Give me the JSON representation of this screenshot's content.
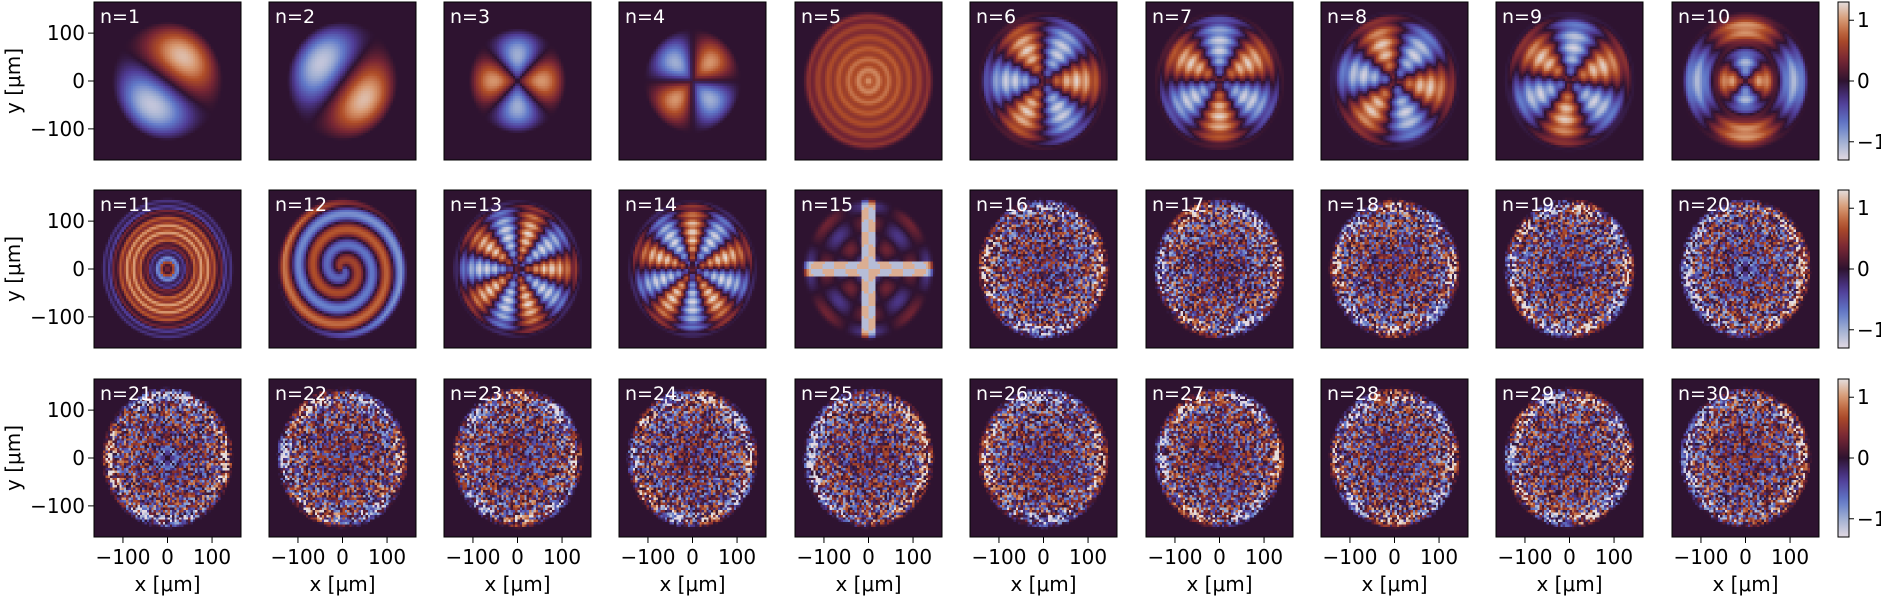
{
  "chart_data": {
    "type": "heatmap",
    "layout": {
      "rows": 3,
      "cols": 10
    },
    "colormap": "twilight_shifted",
    "colors": {
      "background": "#2e1330",
      "positive": "#a64220",
      "negative": "#5e77c6",
      "extreme": "#e6dfe0"
    },
    "xlabel": "x [μm]",
    "ylabel": "y [μm]",
    "xlim": [
      -165,
      165
    ],
    "ylim": [
      -165,
      165
    ],
    "xticks": [
      -100,
      0,
      100
    ],
    "xtick_labels": [
      "−100",
      "0",
      "100"
    ],
    "yticks": [
      100,
      0,
      -100
    ],
    "ytick_labels": [
      "100",
      "0",
      "−100"
    ],
    "colorbar": {
      "ticks": [
        1,
        0,
        -1
      ],
      "tick_labels": [
        "1",
        "0",
        "−1"
      ],
      "range": [
        -1.3,
        1.3
      ]
    },
    "panels": [
      {
        "label": "n=1",
        "n": 1
      },
      {
        "label": "n=2",
        "n": 2
      },
      {
        "label": "n=3",
        "n": 3
      },
      {
        "label": "n=4",
        "n": 4
      },
      {
        "label": "n=5",
        "n": 5
      },
      {
        "label": "n=6",
        "n": 6
      },
      {
        "label": "n=7",
        "n": 7
      },
      {
        "label": "n=8",
        "n": 8
      },
      {
        "label": "n=9",
        "n": 9
      },
      {
        "label": "n=10",
        "n": 10
      },
      {
        "label": "n=11",
        "n": 11
      },
      {
        "label": "n=12",
        "n": 12
      },
      {
        "label": "n=13",
        "n": 13
      },
      {
        "label": "n=14",
        "n": 14
      },
      {
        "label": "n=15",
        "n": 15
      },
      {
        "label": "n=16",
        "n": 16
      },
      {
        "label": "n=17",
        "n": 17
      },
      {
        "label": "n=18",
        "n": 18
      },
      {
        "label": "n=19",
        "n": 19
      },
      {
        "label": "n=20",
        "n": 20
      },
      {
        "label": "n=21",
        "n": 21
      },
      {
        "label": "n=22",
        "n": 22
      },
      {
        "label": "n=23",
        "n": 23
      },
      {
        "label": "n=24",
        "n": 24
      },
      {
        "label": "n=25",
        "n": 25
      },
      {
        "label": "n=26",
        "n": 26
      },
      {
        "label": "n=27",
        "n": 27
      },
      {
        "label": "n=28",
        "n": 28
      },
      {
        "label": "n=29",
        "n": 29
      },
      {
        "label": "n=30",
        "n": 30
      }
    ]
  }
}
